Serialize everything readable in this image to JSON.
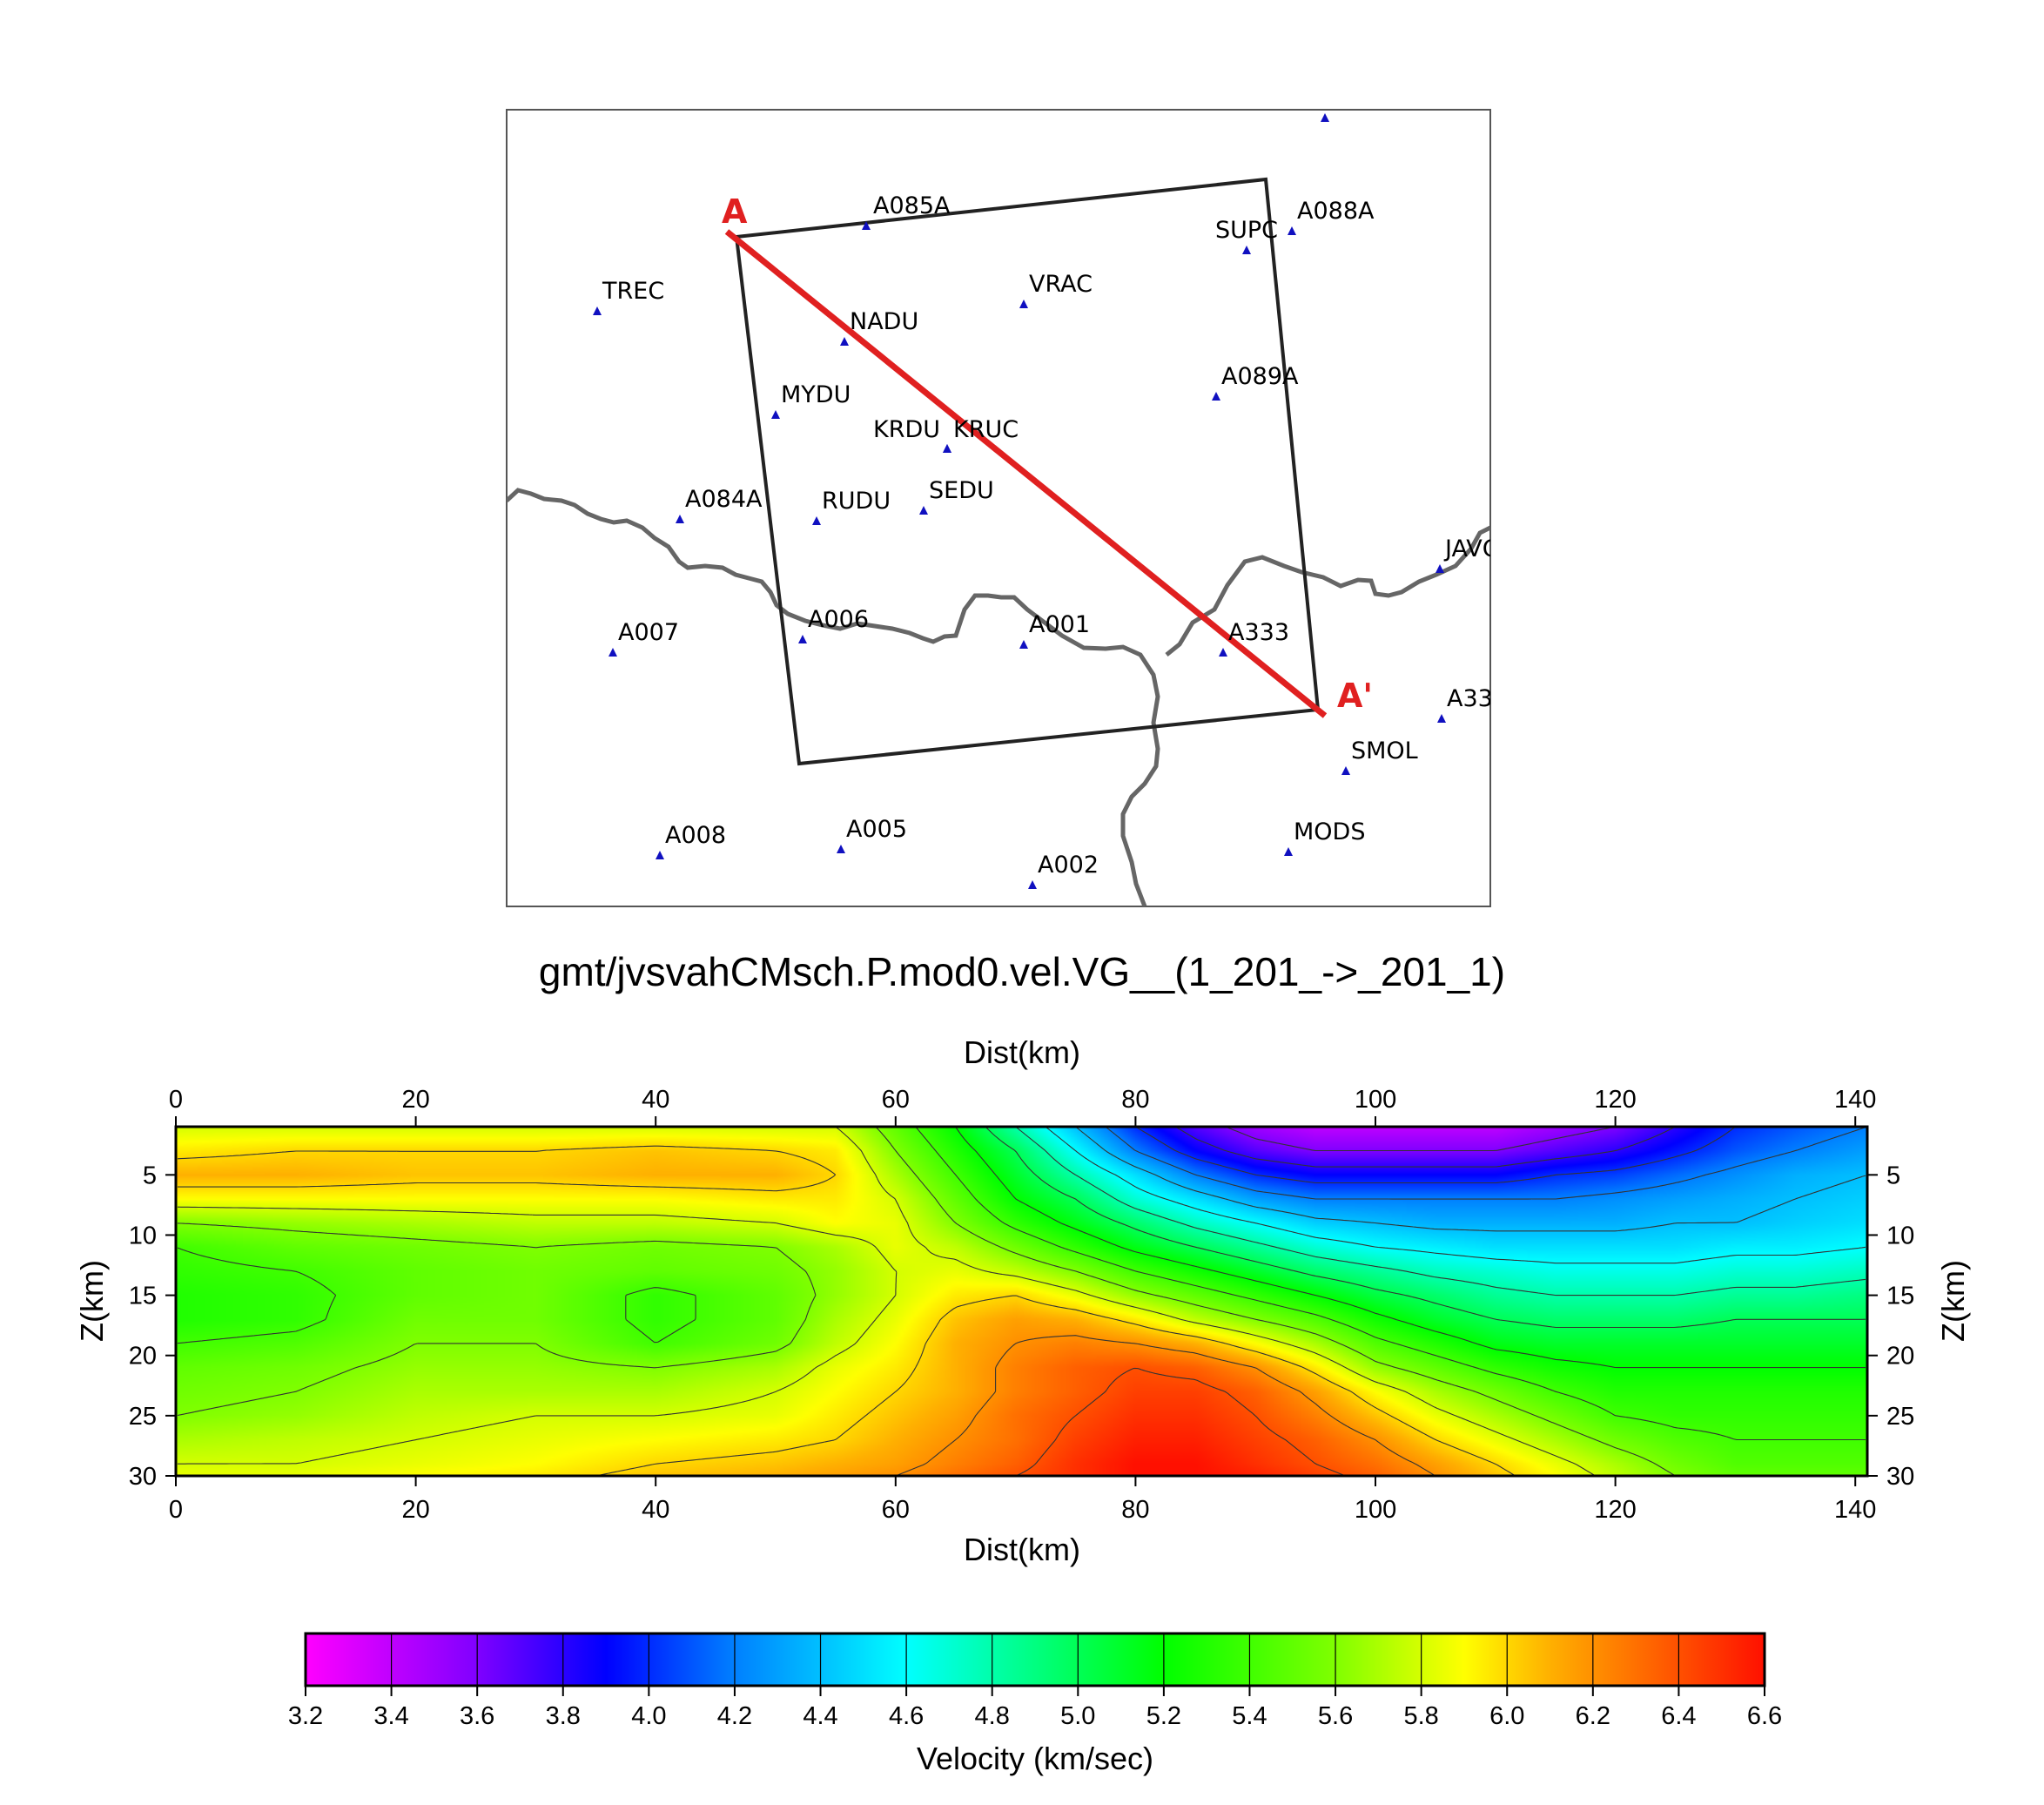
{
  "title": "gmt/jvsvahCMsch.P.mod0.vel.VG__(1_201_->_201_1)",
  "chart_data": [
    {
      "type": "map",
      "profile": {
        "start_label": "A",
        "end_label": "A'"
      },
      "stations": [
        {
          "name": "A085A"
        },
        {
          "name": "A088A"
        },
        {
          "name": "SUPC"
        },
        {
          "name": "TREC"
        },
        {
          "name": "VRAC"
        },
        {
          "name": "NADU"
        },
        {
          "name": "A089A"
        },
        {
          "name": "MYDU"
        },
        {
          "name": "KRDU"
        },
        {
          "name": "KRUC"
        },
        {
          "name": "A084A"
        },
        {
          "name": "RUDU"
        },
        {
          "name": "SEDU"
        },
        {
          "name": "JAVC"
        },
        {
          "name": "A006"
        },
        {
          "name": "A007"
        },
        {
          "name": "A001"
        },
        {
          "name": "A333"
        },
        {
          "name": "A33"
        },
        {
          "name": "SMOL"
        },
        {
          "name": "A008"
        },
        {
          "name": "A005"
        },
        {
          "name": "MODS"
        },
        {
          "name": "A002"
        },
        {
          "name": ""
        }
      ],
      "colors": {
        "profile": "#e02020",
        "station": "#1010c0",
        "border": "#666666",
        "box": "#222222"
      }
    },
    {
      "type": "heatmap",
      "xlabel": "Dist(km)",
      "ylabel": "Z(km)",
      "xlim": [
        0,
        141
      ],
      "ylim": [
        1,
        30
      ],
      "y_inverted": true,
      "xticks": [
        0,
        20,
        40,
        60,
        80,
        100,
        120,
        140
      ],
      "yticks": [
        5,
        10,
        15,
        20,
        25,
        30
      ],
      "contour_interval": 0.2,
      "velocity_grid": {
        "x": [
          0,
          10,
          20,
          30,
          40,
          50,
          55,
          60,
          65,
          70,
          75,
          80,
          85,
          90,
          95,
          100,
          105,
          110,
          115,
          120,
          125,
          130,
          135,
          141
        ],
        "z": [
          1,
          3,
          5,
          7,
          9,
          11,
          13,
          15,
          17,
          19,
          21,
          23,
          25,
          27,
          29,
          30
        ],
        "v": [
          [
            5.8,
            5.8,
            5.8,
            5.8,
            5.8,
            5.8,
            5.8,
            5.5,
            5.2,
            4.8,
            4.4,
            4.0,
            3.7,
            3.5,
            3.4,
            3.4,
            3.4,
            3.4,
            3.5,
            3.6,
            3.8,
            4.0,
            4.1,
            4.2
          ],
          [
            5.95,
            6.0,
            6.0,
            6.0,
            6.05,
            6.0,
            5.95,
            5.6,
            5.3,
            5.0,
            4.6,
            4.2,
            3.9,
            3.7,
            3.6,
            3.6,
            3.6,
            3.6,
            3.7,
            3.8,
            3.95,
            4.1,
            4.2,
            4.3
          ],
          [
            6.1,
            6.1,
            6.05,
            6.05,
            6.1,
            6.1,
            6.0,
            5.7,
            5.4,
            5.1,
            4.8,
            4.5,
            4.2,
            4.0,
            3.9,
            3.9,
            3.9,
            3.9,
            4.0,
            4.05,
            4.15,
            4.25,
            4.35,
            4.4
          ],
          [
            5.9,
            5.9,
            5.9,
            5.9,
            5.9,
            5.95,
            5.95,
            5.8,
            5.5,
            5.2,
            5.0,
            4.7,
            4.5,
            4.3,
            4.2,
            4.2,
            4.2,
            4.2,
            4.2,
            4.25,
            4.3,
            4.35,
            4.4,
            4.45
          ],
          [
            5.6,
            5.65,
            5.7,
            5.75,
            5.75,
            5.8,
            5.9,
            5.85,
            5.6,
            5.35,
            5.15,
            4.95,
            4.75,
            4.6,
            4.45,
            4.4,
            4.35,
            4.35,
            4.35,
            4.35,
            4.4,
            4.4,
            4.45,
            4.5
          ],
          [
            5.4,
            5.5,
            5.55,
            5.6,
            5.55,
            5.6,
            5.7,
            5.85,
            5.75,
            5.55,
            5.35,
            5.15,
            5.0,
            4.85,
            4.7,
            4.6,
            4.55,
            4.5,
            4.5,
            4.5,
            4.5,
            4.55,
            4.55,
            4.6
          ],
          [
            5.35,
            5.4,
            5.5,
            5.55,
            5.5,
            5.55,
            5.65,
            5.8,
            5.85,
            5.75,
            5.6,
            5.4,
            5.25,
            5.1,
            4.95,
            4.85,
            4.75,
            4.7,
            4.65,
            4.65,
            4.65,
            4.7,
            4.7,
            4.75
          ],
          [
            5.3,
            5.35,
            5.5,
            5.55,
            5.35,
            5.5,
            5.65,
            5.8,
            5.95,
            6.0,
            5.85,
            5.65,
            5.5,
            5.35,
            5.2,
            5.05,
            4.95,
            4.85,
            4.8,
            4.8,
            4.8,
            4.85,
            4.85,
            4.9
          ],
          [
            5.3,
            5.35,
            5.55,
            5.55,
            5.35,
            5.5,
            5.7,
            5.85,
            6.05,
            6.15,
            6.1,
            5.95,
            5.75,
            5.6,
            5.45,
            5.25,
            5.1,
            5.0,
            4.95,
            4.95,
            4.95,
            5.0,
            5.0,
            5.0
          ],
          [
            5.4,
            5.45,
            5.6,
            5.6,
            5.4,
            5.55,
            5.75,
            5.9,
            6.1,
            6.2,
            6.25,
            6.2,
            6.1,
            5.9,
            5.7,
            5.45,
            5.3,
            5.15,
            5.1,
            5.1,
            5.1,
            5.1,
            5.1,
            5.1
          ],
          [
            5.5,
            5.55,
            5.65,
            5.65,
            5.6,
            5.7,
            5.85,
            5.95,
            6.1,
            6.25,
            6.35,
            6.4,
            6.35,
            6.2,
            5.95,
            5.65,
            5.5,
            5.35,
            5.25,
            5.2,
            5.2,
            5.2,
            5.2,
            5.2
          ],
          [
            5.55,
            5.6,
            5.7,
            5.7,
            5.7,
            5.8,
            5.9,
            6.0,
            6.1,
            6.25,
            6.35,
            6.45,
            6.45,
            6.35,
            6.15,
            5.9,
            5.7,
            5.55,
            5.4,
            5.3,
            5.3,
            5.3,
            5.3,
            5.3
          ],
          [
            5.6,
            5.65,
            5.75,
            5.8,
            5.8,
            5.85,
            5.95,
            6.05,
            6.15,
            6.3,
            6.4,
            6.5,
            6.5,
            6.4,
            6.25,
            6.05,
            5.85,
            5.7,
            5.55,
            5.4,
            5.35,
            5.35,
            5.35,
            5.35
          ],
          [
            5.7,
            5.75,
            5.8,
            5.85,
            5.9,
            5.95,
            6.0,
            6.1,
            6.2,
            6.3,
            6.45,
            6.55,
            6.55,
            6.45,
            6.35,
            6.2,
            6.0,
            5.85,
            5.7,
            5.55,
            5.45,
            5.4,
            5.4,
            5.4
          ],
          [
            5.8,
            5.8,
            5.85,
            5.9,
            6.0,
            6.05,
            6.1,
            6.15,
            6.25,
            6.35,
            6.5,
            6.6,
            6.6,
            6.5,
            6.4,
            6.3,
            6.15,
            6.0,
            5.85,
            5.7,
            5.55,
            5.45,
            5.45,
            5.45
          ],
          [
            5.85,
            5.85,
            5.9,
            5.95,
            6.05,
            6.1,
            6.15,
            6.2,
            6.3,
            6.4,
            6.5,
            6.6,
            6.6,
            6.55,
            6.45,
            6.35,
            6.2,
            6.05,
            5.9,
            5.75,
            5.6,
            5.5,
            5.5,
            5.5
          ]
        ]
      }
    },
    {
      "type": "colorbar",
      "label": "Velocity (km/sec)",
      "min": 3.2,
      "max": 6.6,
      "step": 0.2,
      "tick_labels": [
        "3.2",
        "3.4",
        "3.6",
        "3.8",
        "4.0",
        "4.2",
        "4.4",
        "4.6",
        "4.8",
        "5.0",
        "5.2",
        "5.4",
        "5.6",
        "5.8",
        "6.0",
        "6.2",
        "6.4",
        "6.6"
      ],
      "stops": [
        {
          "v": 3.2,
          "color": "#ff00ff"
        },
        {
          "v": 3.6,
          "color": "#8000ff"
        },
        {
          "v": 3.9,
          "color": "#0000ff"
        },
        {
          "v": 4.2,
          "color": "#0080ff"
        },
        {
          "v": 4.6,
          "color": "#00ffff"
        },
        {
          "v": 4.9,
          "color": "#00ff80"
        },
        {
          "v": 5.2,
          "color": "#00ff00"
        },
        {
          "v": 5.6,
          "color": "#80ff00"
        },
        {
          "v": 5.9,
          "color": "#ffff00"
        },
        {
          "v": 6.1,
          "color": "#ffb000"
        },
        {
          "v": 6.6,
          "color": "#ff1000"
        }
      ]
    }
  ]
}
